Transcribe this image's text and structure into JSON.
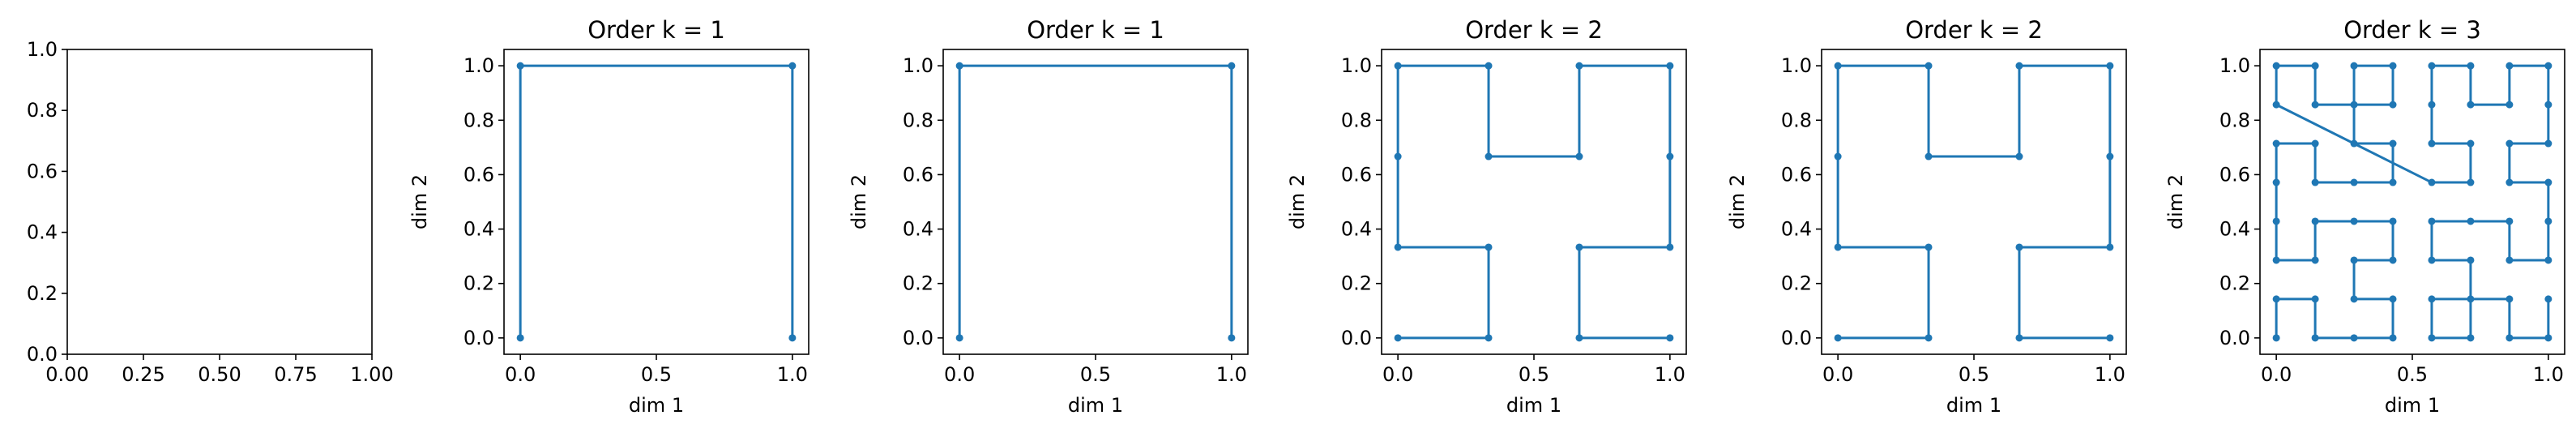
{
  "figure": {
    "line_color": "#1f77b4",
    "frame_color": "#000000",
    "background": "#ffffff"
  },
  "chart_data": [
    {
      "type": "line",
      "title": "",
      "xlabel": "",
      "ylabel": "",
      "xlim": [
        0,
        1
      ],
      "ylim": [
        0,
        1
      ],
      "x_ticks": [
        "0.00",
        "0.25",
        "0.50",
        "0.75",
        "1.00"
      ],
      "y_ticks": [
        "0.0",
        "0.2",
        "0.4",
        "0.6",
        "0.8",
        "1.0"
      ],
      "grid": false,
      "series": []
    },
    {
      "type": "line",
      "title": "Order k = 1",
      "xlabel": "dim 1",
      "ylabel": "dim 2",
      "xlim": [
        -0.06,
        1.06
      ],
      "ylim": [
        -0.06,
        1.06
      ],
      "x_ticks": [
        "0.0",
        "0.5",
        "1.0"
      ],
      "y_ticks": [
        "0.0",
        "0.2",
        "0.4",
        "0.6",
        "0.8",
        "1.0"
      ],
      "grid": false,
      "series": [
        {
          "points": [
            [
              0,
              0
            ],
            [
              0,
              1
            ],
            [
              1,
              1
            ],
            [
              1,
              0
            ]
          ]
        }
      ]
    },
    {
      "type": "line",
      "title": "Order k = 1",
      "xlabel": "dim 1",
      "ylabel": "dim 2",
      "xlim": [
        -0.06,
        1.06
      ],
      "ylim": [
        -0.06,
        1.06
      ],
      "x_ticks": [
        "0.0",
        "0.5",
        "1.0"
      ],
      "y_ticks": [
        "0.0",
        "0.2",
        "0.4",
        "0.6",
        "0.8",
        "1.0"
      ],
      "grid": false,
      "series": [
        {
          "points": [
            [
              0,
              0
            ],
            [
              0,
              1
            ],
            [
              1,
              1
            ],
            [
              1,
              0
            ]
          ]
        }
      ]
    },
    {
      "type": "line",
      "title": "Order k = 2",
      "xlabel": "dim 1",
      "ylabel": "dim 2",
      "xlim": [
        -0.06,
        1.06
      ],
      "ylim": [
        -0.06,
        1.06
      ],
      "x_ticks": [
        "0.0",
        "0.5",
        "1.0"
      ],
      "y_ticks": [
        "0.0",
        "0.2",
        "0.4",
        "0.6",
        "0.8",
        "1.0"
      ],
      "grid": false,
      "series": [
        {
          "points": [
            [
              0,
              0
            ],
            [
              0.3333,
              0
            ],
            [
              0.3333,
              0.3333
            ],
            [
              0,
              0.3333
            ],
            [
              0,
              0.6667
            ],
            [
              0,
              1
            ],
            [
              0.3333,
              1
            ],
            [
              0.3333,
              0.6667
            ],
            [
              0.6667,
              0.6667
            ],
            [
              0.6667,
              1
            ],
            [
              1,
              1
            ],
            [
              1,
              0.6667
            ],
            [
              1,
              0.3333
            ],
            [
              0.6667,
              0.3333
            ],
            [
              0.6667,
              0
            ],
            [
              1,
              0
            ]
          ]
        }
      ]
    },
    {
      "type": "line",
      "title": "Order k = 2",
      "xlabel": "dim 1",
      "ylabel": "dim 2",
      "xlim": [
        -0.06,
        1.06
      ],
      "ylim": [
        -0.06,
        1.06
      ],
      "x_ticks": [
        "0.0",
        "0.5",
        "1.0"
      ],
      "y_ticks": [
        "0.0",
        "0.2",
        "0.4",
        "0.6",
        "0.8",
        "1.0"
      ],
      "grid": false,
      "series": [
        {
          "points": [
            [
              0,
              0
            ],
            [
              0.3333,
              0
            ],
            [
              0.3333,
              0.3333
            ],
            [
              0,
              0.3333
            ],
            [
              0,
              0.6667
            ],
            [
              0,
              1
            ],
            [
              0.3333,
              1
            ],
            [
              0.3333,
              0.6667
            ],
            [
              0.6667,
              0.6667
            ],
            [
              0.6667,
              1
            ],
            [
              1,
              1
            ],
            [
              1,
              0.6667
            ],
            [
              1,
              0.3333
            ],
            [
              0.6667,
              0.3333
            ],
            [
              0.6667,
              0
            ],
            [
              1,
              0
            ]
          ]
        }
      ]
    },
    {
      "type": "line",
      "title": "Order k = 3",
      "xlabel": "dim 1",
      "ylabel": "dim 2",
      "xlim": [
        -0.06,
        1.06
      ],
      "ylim": [
        -0.06,
        1.06
      ],
      "x_ticks": [
        "0.0",
        "0.5",
        "1.0"
      ],
      "y_ticks": [
        "0.0",
        "0.2",
        "0.4",
        "0.6",
        "0.8",
        "1.0"
      ],
      "grid": false,
      "series": [
        {
          "points": [
            [
              0,
              0
            ],
            [
              0,
              0.1429
            ],
            [
              0.1429,
              0.1429
            ],
            [
              0.1429,
              0
            ],
            [
              0.2857,
              0
            ],
            [
              0.4286,
              0
            ],
            [
              0.4286,
              0.1429
            ],
            [
              0.2857,
              0.1429
            ],
            [
              0.2857,
              0.2857
            ],
            [
              0.4286,
              0.2857
            ],
            [
              0.4286,
              0.4286
            ],
            [
              0.2857,
              0.4286
            ],
            [
              0.1429,
              0.4286
            ],
            [
              0.1429,
              0.2857
            ],
            [
              0,
              0.2857
            ],
            [
              0,
              0.4286
            ],
            [
              0,
              0.5714
            ],
            [
              0,
              0.7143
            ],
            [
              0.1429,
              0.7143
            ],
            [
              0.1429,
              0.5714
            ],
            [
              0.2857,
              0.5714
            ],
            [
              0.4286,
              0.5714
            ],
            [
              0.4286,
              0.7143
            ],
            [
              0.2857,
              0.7143
            ],
            [
              0.2857,
              0.8571
            ],
            [
              0.2857,
              1
            ],
            [
              0.4286,
              1
            ],
            [
              0.4286,
              0.8571
            ],
            [
              0.1429,
              0.8571
            ],
            [
              0.1429,
              1
            ],
            [
              0,
              1
            ],
            [
              0,
              0.8571
            ],
            [
              0.5714,
              0.5714
            ],
            [
              0.7143,
              0.5714
            ],
            [
              0.7143,
              0.7143
            ],
            [
              0.5714,
              0.7143
            ],
            [
              0.5714,
              0.8571
            ],
            [
              0.5714,
              1
            ],
            [
              0.7143,
              1
            ],
            [
              0.7143,
              0.8571
            ],
            [
              0.8571,
              0.8571
            ],
            [
              0.8571,
              1
            ],
            [
              1,
              1
            ],
            [
              1,
              0.8571
            ],
            [
              1,
              0.7143
            ],
            [
              0.8571,
              0.7143
            ],
            [
              0.8571,
              0.5714
            ],
            [
              1,
              0.5714
            ],
            [
              1,
              0.4286
            ],
            [
              1,
              0.2857
            ],
            [
              0.8571,
              0.2857
            ],
            [
              0.8571,
              0.4286
            ],
            [
              0.7143,
              0.4286
            ],
            [
              0.5714,
              0.4286
            ],
            [
              0.5714,
              0.2857
            ],
            [
              0.7143,
              0.2857
            ],
            [
              0.7143,
              0.1429
            ],
            [
              0.7143,
              0
            ],
            [
              0.5714,
              0
            ],
            [
              0.5714,
              0.1429
            ],
            [
              0.8571,
              0.1429
            ],
            [
              0.8571,
              0
            ],
            [
              1,
              0
            ],
            [
              1,
              0.1429
            ]
          ]
        }
      ]
    }
  ]
}
